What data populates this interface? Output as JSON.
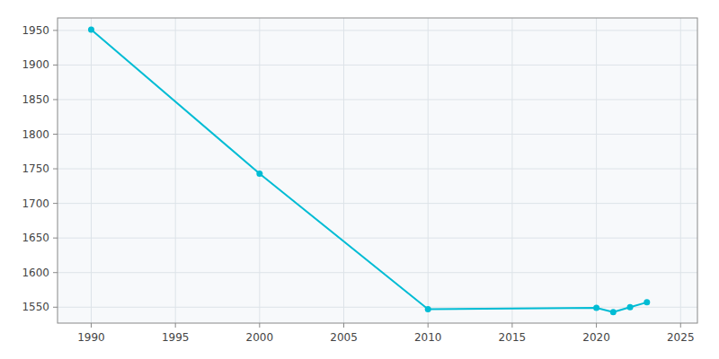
{
  "chart_data": {
    "type": "line",
    "x": [
      1990,
      2000,
      2010,
      2020,
      2021,
      2022,
      2023
    ],
    "values": [
      1951,
      1743,
      1547,
      1549,
      1543,
      1550,
      1557
    ],
    "color": "#00BCD4",
    "marker": "circle",
    "xlim": [
      1988,
      2026
    ],
    "ylim": [
      1527,
      1968
    ],
    "xticks": [
      1990,
      1995,
      2000,
      2005,
      2010,
      2015,
      2020,
      2025
    ],
    "yticks": [
      1550,
      1600,
      1650,
      1700,
      1750,
      1800,
      1850,
      1900,
      1950
    ],
    "grid": true
  }
}
